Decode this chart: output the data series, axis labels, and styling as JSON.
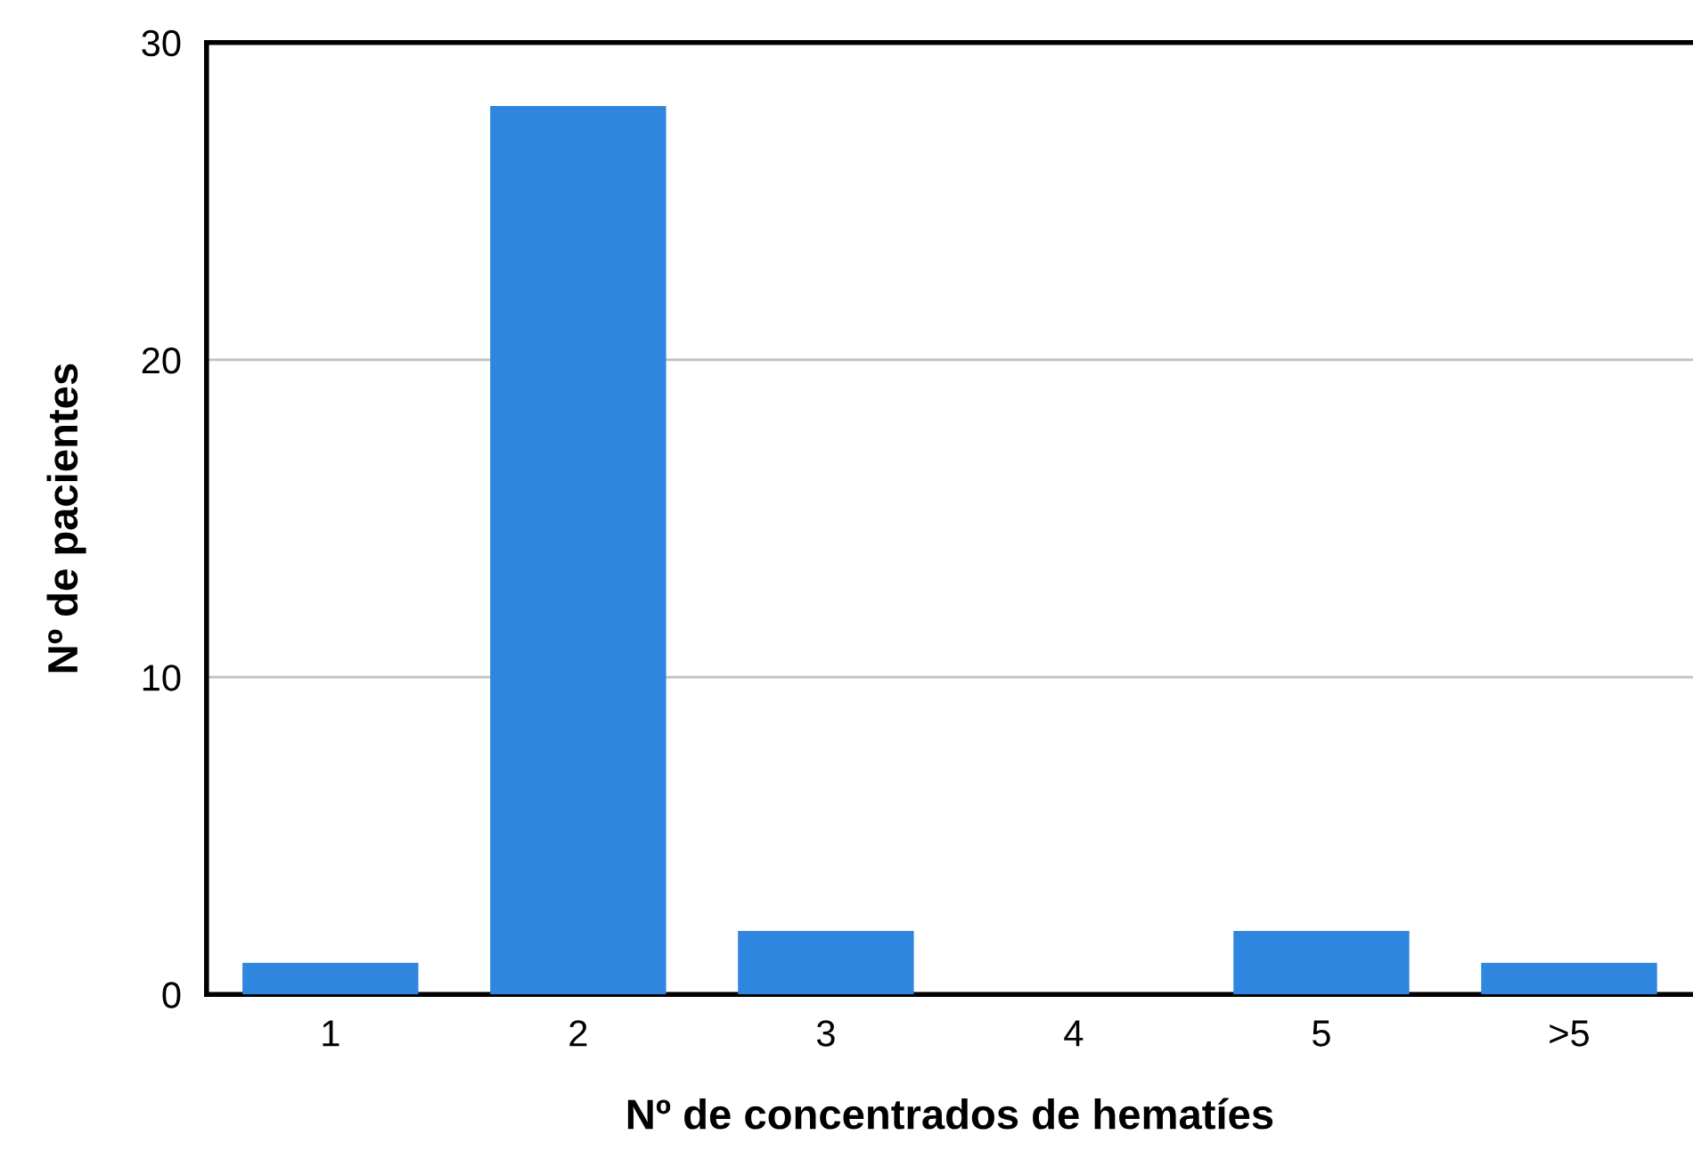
{
  "chart_data": {
    "type": "bar",
    "xlabel": "Nº de concentrados de hematíes",
    "ylabel": "Nº de pacientes",
    "categories": [
      "1",
      "2",
      "3",
      "4",
      "5",
      ">5"
    ],
    "values": [
      1,
      28,
      2,
      0,
      2,
      1
    ],
    "color": "#2f86de",
    "ylim": [
      0,
      30
    ],
    "yticks": [
      0,
      10,
      20,
      30
    ],
    "grid": "y",
    "legend": false
  }
}
